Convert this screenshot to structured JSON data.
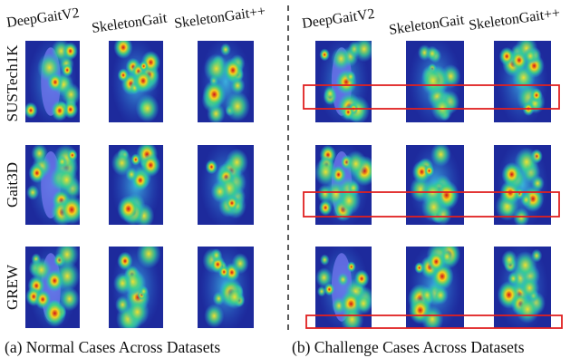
{
  "left_panel": {
    "columns": [
      "DeepGaitV2",
      "SkeletonGait",
      "SkeletonGait++"
    ],
    "rows": [
      "SUSTech1K",
      "Gait3D",
      "GREW"
    ],
    "caption": "(a) Normal Cases Across Datasets"
  },
  "right_panel": {
    "columns": [
      "DeepGaitV2",
      "SkeletonGait",
      "SkeletonGait++"
    ],
    "caption": "(b) Challenge Cases Across Datasets"
  }
}
